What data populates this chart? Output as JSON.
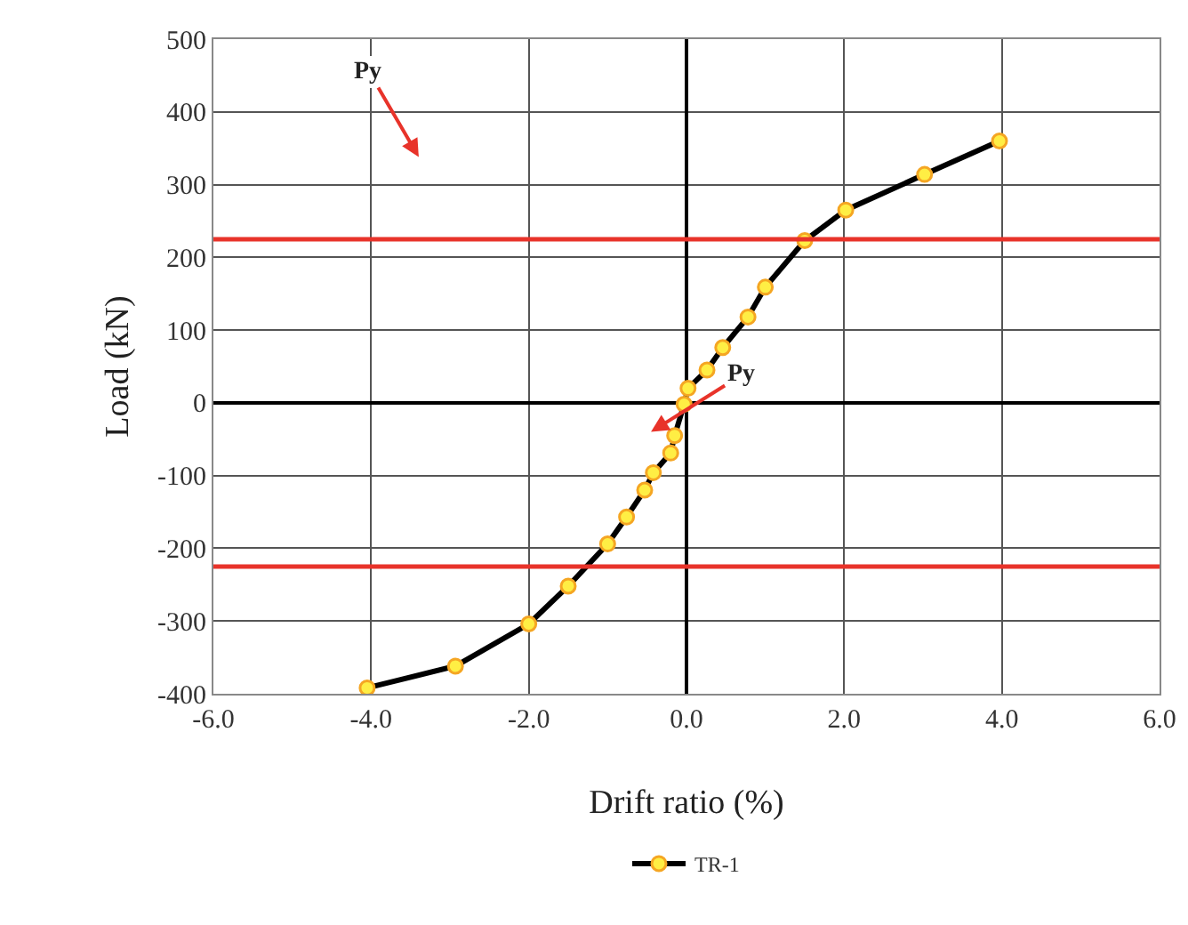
{
  "chart_data": {
    "type": "line",
    "xlabel": "Drift ratio (%)",
    "ylabel": "Load (kN)",
    "series": [
      {
        "name": "TR-1",
        "color": "#000000",
        "x": [
          -4.05,
          -2.93,
          -2.0,
          -1.5,
          -1.0,
          -0.76,
          -0.53,
          -0.42,
          -0.2,
          -0.15,
          -0.03,
          0.02,
          0.26,
          0.46,
          0.78,
          1.0,
          1.5,
          2.02,
          3.02,
          3.97
        ],
        "values": [
          -392,
          -362,
          -304,
          -252,
          -194,
          -157,
          -120,
          -96,
          -69,
          -45,
          -2,
          20,
          45,
          76,
          118,
          159,
          223,
          265,
          314,
          360
        ]
      }
    ],
    "marker": "circle",
    "line_style": "solid",
    "xlim": [
      -6,
      6
    ],
    "xticks": [
      {
        "value": -6,
        "label": "-6.0"
      },
      {
        "value": -4,
        "label": "-4.0"
      },
      {
        "value": -2,
        "label": "-2.0"
      },
      {
        "value": 0,
        "label": "0.0"
      },
      {
        "value": 2,
        "label": "2.0"
      },
      {
        "value": 4,
        "label": "4.0"
      },
      {
        "value": 6,
        "label": "6.0"
      }
    ],
    "ylim": [
      -400,
      500
    ],
    "yticks": [
      -400,
      -300,
      -200,
      -100,
      0,
      100,
      200,
      300,
      400,
      500
    ],
    "ref_lines": [
      {
        "axis": "y",
        "value": 225,
        "color": "#e8332a"
      },
      {
        "axis": "y",
        "value": -225,
        "color": "#e8332a"
      }
    ],
    "annotations": [
      "Py",
      "Py"
    ],
    "grid": true,
    "legend": "bottom"
  }
}
